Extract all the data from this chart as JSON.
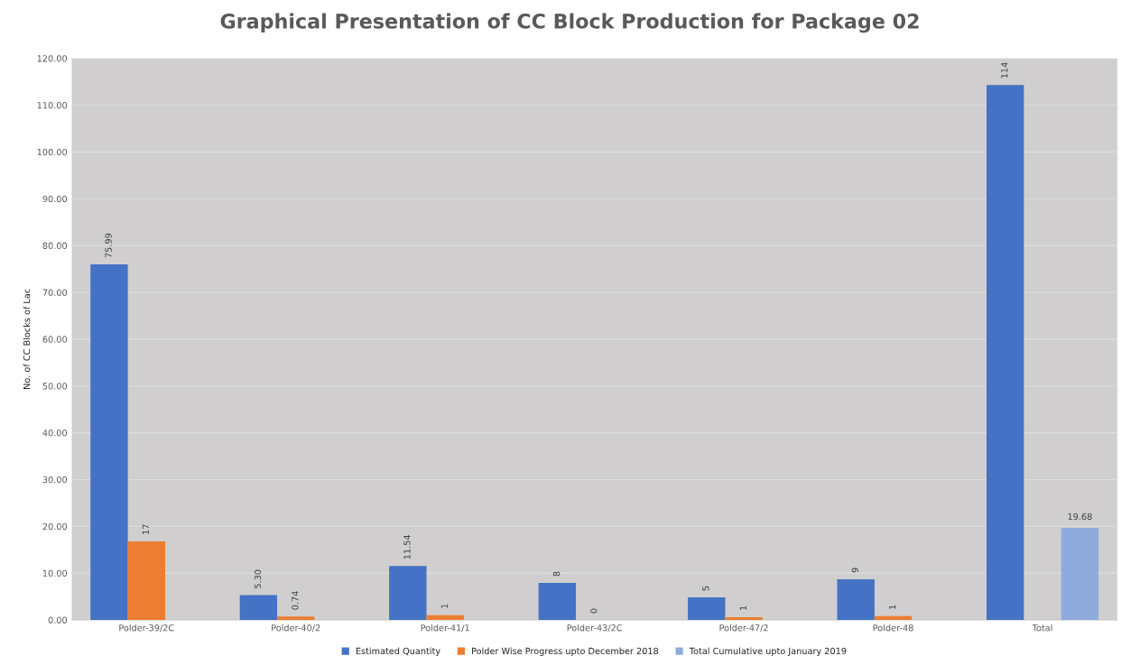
{
  "chart_data": {
    "type": "bar",
    "title": "Graphical Presentation of CC Block Production for Package 02",
    "ylabel": "No. of CC Blocks of Lac",
    "categories": [
      "Polder-39/2C",
      "Polder-40/2",
      "Polder-41/1",
      "Polder-43/2C",
      "Polder-47/2",
      "Polder-48",
      "Total"
    ],
    "series": [
      {
        "name": "Estimated Quantity",
        "color": "#4472c4",
        "values": [
          75.99,
          5.3,
          11.54,
          7.9,
          4.8,
          8.7,
          114.3
        ],
        "value_labels": [
          "75.99",
          "5.30",
          "11.54",
          "8",
          "5",
          "9",
          "114"
        ]
      },
      {
        "name": "Polder Wise Progress upto December 2018",
        "color": "#ed7d31",
        "values": [
          16.8,
          0.74,
          1.0,
          0,
          0.6,
          0.8,
          null
        ],
        "value_labels": [
          "17",
          "0.74",
          "1",
          "0",
          "1",
          "1",
          null
        ]
      },
      {
        "name": "Total Cumulative upto January 2019",
        "color": "#8faadc",
        "values": [
          null,
          null,
          null,
          null,
          null,
          null,
          19.68
        ],
        "value_labels": [
          null,
          null,
          null,
          null,
          null,
          null,
          "19.68"
        ]
      }
    ],
    "ylim": [
      0,
      120
    ],
    "yticks": [
      {
        "value": 0,
        "label": "0.00"
      },
      {
        "value": 10,
        "label": "10.00"
      },
      {
        "value": 20,
        "label": "20.00"
      },
      {
        "value": 30,
        "label": "30.00"
      },
      {
        "value": 40,
        "label": "40.00"
      },
      {
        "value": 50,
        "label": "50.00"
      },
      {
        "value": 60,
        "label": "60.00"
      },
      {
        "value": 70,
        "label": "70.00"
      },
      {
        "value": 80,
        "label": "80.00"
      },
      {
        "value": 90,
        "label": "90.00"
      },
      {
        "value": 100,
        "label": "100.00"
      },
      {
        "value": 110,
        "label": "110.00"
      },
      {
        "value": 120,
        "label": "120.00"
      }
    ],
    "grid": "y",
    "legend": "bottom"
  }
}
